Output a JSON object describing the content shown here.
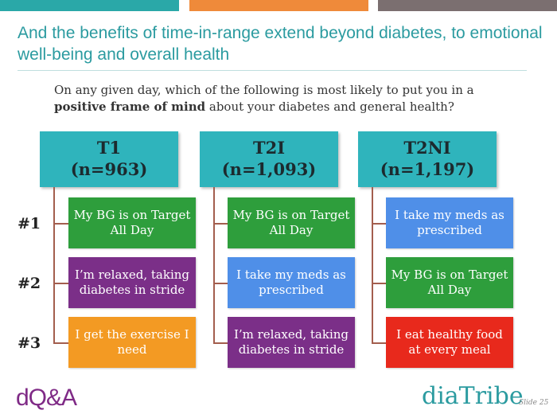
{
  "title": "And the benefits of time-in-range extend beyond diabetes, to emotional well-being and overall health",
  "question": {
    "prefix": "On any given day, which of the following is most likely to put you in a",
    "bold": "positive frame of mind",
    "suffix": " about your diabetes and general health?"
  },
  "ranks": [
    "#1",
    "#2",
    "#3"
  ],
  "columns": [
    {
      "name": "T1",
      "n": "(n=963)",
      "items": [
        {
          "text": "My BG is on Target All Day",
          "color": "#2e9e3c"
        },
        {
          "text": "I’m relaxed, taking diabetes in stride",
          "color": "#7b2f88"
        },
        {
          "text": "I get the exercise I need",
          "color": "#f39a23"
        }
      ]
    },
    {
      "name": "T2I",
      "n": "(n=1,093)",
      "items": [
        {
          "text": "My BG is on Target All Day",
          "color": "#2e9e3c"
        },
        {
          "text": "I take my meds as prescribed",
          "color": "#4f8fe8"
        },
        {
          "text": "I’m relaxed, taking diabetes in stride",
          "color": "#7b2f88"
        }
      ]
    },
    {
      "name": "T2NI",
      "n": "(n=1,197)",
      "items": [
        {
          "text": "I take my meds as prescribed",
          "color": "#4f8fe8"
        },
        {
          "text": "My BG is on Target All Day",
          "color": "#2e9e3c"
        },
        {
          "text": "I eat healthy food at every meal",
          "color": "#e8291c"
        }
      ]
    }
  ],
  "footer": {
    "logo_left": "dQ&A",
    "logo_right": "diaTribe",
    "slide": "Slide 25"
  }
}
